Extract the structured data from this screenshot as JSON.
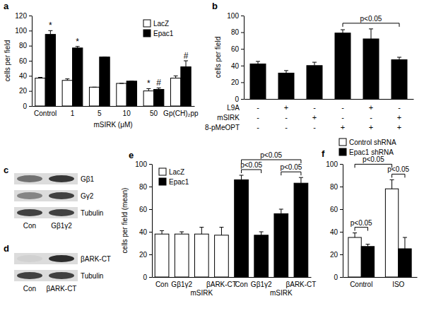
{
  "chart_data": [
    {
      "type": "bar",
      "title": "a",
      "y_label": "cells per field",
      "categories": [
        "Control",
        "1",
        "5",
        "10",
        "50",
        "Gp(CH)₂pp"
      ],
      "series": [
        {
          "name": "LacZ",
          "color": "#ffffff",
          "values": [
            37,
            34,
            25,
            30,
            20,
            37
          ],
          "errors": [
            1,
            2,
            0,
            0,
            3,
            3
          ]
        },
        {
          "name": "Epac1",
          "color": "#000000",
          "values": [
            95,
            77,
            65,
            33,
            22,
            52
          ],
          "errors": [
            5,
            2,
            0,
            0,
            2,
            8
          ]
        }
      ],
      "ylim": [
        0,
        120
      ],
      "yticks": [
        0,
        20,
        40,
        60,
        80,
        100,
        120
      ],
      "legend": "upper right",
      "x_group": {
        "text": "mSIRK (μM)",
        "from": 1,
        "to": 4
      },
      "annotations": [
        {
          "text": "*",
          "series": 1,
          "category": 0
        },
        {
          "text": "*",
          "series": 1,
          "category": 1
        },
        {
          "text": "*",
          "series": 0,
          "category": 4
        },
        {
          "text": "#",
          "series": 1,
          "category": 4
        },
        {
          "text": "#",
          "series": 1,
          "category": 5
        }
      ]
    },
    {
      "type": "bar",
      "title": "b",
      "y_label": "cells per field",
      "categories": [
        null,
        null,
        null,
        null,
        null,
        null
      ],
      "series": [
        {
          "color": "#000000",
          "values": [
            42,
            31,
            40,
            79,
            72,
            47
          ],
          "errors": [
            3,
            3,
            4,
            4,
            12,
            3
          ]
        }
      ],
      "ylim": [
        0,
        100
      ],
      "yticks": [
        0,
        20,
        40,
        60,
        80,
        100
      ],
      "conditions": [
        {
          "label": "L9A",
          "values": [
            "-",
            "+",
            "-",
            "-",
            "+",
            "-"
          ]
        },
        {
          "label": "mSIRK",
          "values": [
            "-",
            "-",
            "+",
            "-",
            "-",
            "+"
          ]
        },
        {
          "label": "8-pMeOPT",
          "values": [
            "-",
            "-",
            "-",
            "+",
            "+",
            "+"
          ]
        }
      ],
      "annotations": [
        {
          "text": "p<0.05",
          "from": {
            "series": 0,
            "category": 3
          },
          "to": {
            "series": 0,
            "category": 5
          }
        }
      ]
    },
    {
      "type": "blot",
      "title": "c",
      "lanes": [
        "Con",
        "Gβ1γ2"
      ],
      "rows": [
        "Gβ1",
        "Gγ2",
        "Tubulin"
      ]
    },
    {
      "type": "blot",
      "title": "d",
      "lanes": [
        "Con",
        "βARK-CT"
      ],
      "rows": [
        "βARK-CT",
        "Tubulin"
      ]
    },
    {
      "type": "bar",
      "title": "e",
      "y_label": "cells per field (mean)",
      "categories": [
        "Con",
        "Gβ1γ2",
        "mSIRK",
        "βARK-CT",
        "Con",
        "Gβ1γ2",
        "mSIRK",
        "βARK-CT"
      ],
      "series": [
        {
          "name": "LacZ",
          "color": "#ffffff",
          "values": [
            38,
            38,
            38,
            37,
            null,
            null,
            null,
            null
          ],
          "errors": [
            3,
            2,
            6,
            7,
            null,
            null,
            null,
            null
          ]
        },
        {
          "name": "Epac1",
          "color": "#000000",
          "values": [
            null,
            null,
            null,
            null,
            86,
            37,
            56,
            83
          ],
          "errors": [
            null,
            null,
            null,
            null,
            4,
            3,
            4,
            5
          ]
        }
      ],
      "ylim": [
        0,
        100
      ],
      "yticks": [
        0,
        20,
        40,
        60,
        80,
        100
      ],
      "legend": "upper left",
      "annotations": [
        {
          "text": "p<0.05",
          "from": {
            "series": 1,
            "category": 4
          },
          "to": {
            "series": 1,
            "category": 5
          }
        },
        {
          "text": "p<0.05",
          "from": {
            "series": 1,
            "category": 6
          },
          "to": {
            "series": 1,
            "category": 7
          }
        },
        {
          "text": "p<0.05",
          "from": {
            "series": 1,
            "category": 4
          },
          "to": {
            "series": 1,
            "category": 7
          }
        }
      ]
    },
    {
      "type": "bar",
      "title": "f",
      "categories": [
        "Control",
        "ISO"
      ],
      "series": [
        {
          "name": "Control shRNA",
          "color": "#ffffff",
          "values": [
            35,
            78
          ],
          "errors": [
            4,
            8
          ]
        },
        {
          "name": "Epac1 shRNA",
          "color": "#000000",
          "values": [
            27,
            25
          ],
          "errors": [
            2,
            10
          ]
        }
      ],
      "ylim": [
        0,
        100
      ],
      "yticks": [
        0,
        20,
        40,
        60,
        80,
        100
      ],
      "legend": "top",
      "annotations": [
        {
          "text": "p<0.05",
          "from": {
            "series": 0,
            "category": 0
          },
          "to": {
            "series": 1,
            "category": 0
          }
        },
        {
          "text": "p<0.05",
          "from": {
            "series": 0,
            "category": 1
          },
          "to": {
            "series": 1,
            "category": 1
          }
        },
        {
          "text": "p<0.05",
          "from": {
            "series": 0,
            "category": 0
          },
          "to": {
            "series": 0,
            "category": 1
          }
        }
      ]
    }
  ]
}
